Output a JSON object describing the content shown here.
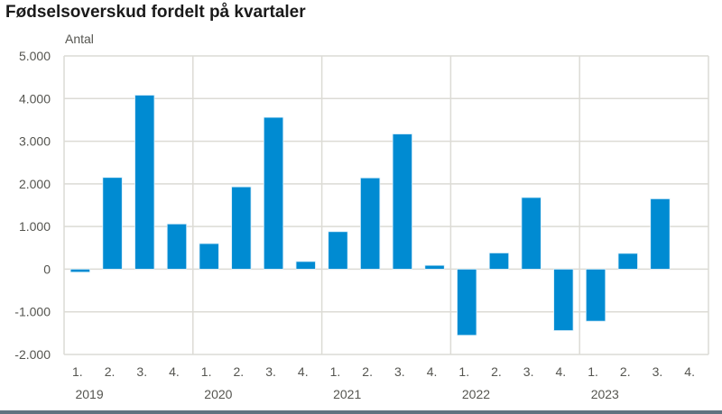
{
  "chart_data": {
    "type": "bar",
    "title": "Fødselsoverskud fordelt på kvartaler",
    "ylabel": "Antal",
    "xlabel": "",
    "ylim": [
      -2000,
      5000
    ],
    "yticks": [
      5000,
      4000,
      3000,
      2000,
      1000,
      0,
      -1000,
      -2000
    ],
    "ytick_labels": [
      "5.000",
      "4.000",
      "3.000",
      "2.000",
      "1.000",
      "0",
      "-1.000",
      "-2.000"
    ],
    "grid": true,
    "bar_color": "#008bd2",
    "groups": [
      {
        "year": "2019",
        "quarters": [
          "1.",
          "2.",
          "3.",
          "4."
        ],
        "values": [
          -70,
          2150,
          4080,
          1060
        ]
      },
      {
        "year": "2020",
        "quarters": [
          "1.",
          "2.",
          "3.",
          "4."
        ],
        "values": [
          600,
          1930,
          3560,
          180
        ]
      },
      {
        "year": "2021",
        "quarters": [
          "1.",
          "2.",
          "3.",
          "4."
        ],
        "values": [
          880,
          2140,
          3170,
          90
        ]
      },
      {
        "year": "2022",
        "quarters": [
          "1.",
          "2.",
          "3.",
          "4."
        ],
        "values": [
          -1550,
          380,
          1680,
          -1440
        ]
      },
      {
        "year": "2023",
        "quarters": [
          "1.",
          "2.",
          "3.",
          "4."
        ],
        "values": [
          -1220,
          370,
          1650,
          null
        ]
      }
    ]
  }
}
